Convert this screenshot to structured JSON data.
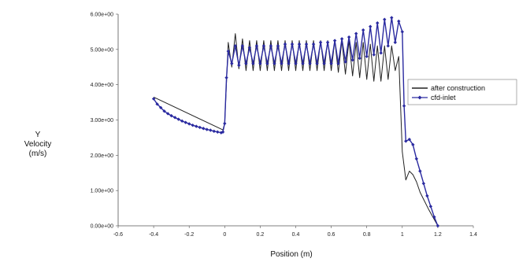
{
  "chart_data": {
    "type": "line",
    "title": "",
    "xlabel": "Position (m)",
    "ylabel": [
      "Y",
      "Velocity",
      "(m/s)"
    ],
    "xlim": [
      -0.6,
      1.4
    ],
    "ylim": [
      0,
      6
    ],
    "xticks": [
      -0.6,
      -0.4,
      -0.2,
      0,
      0.2,
      0.4,
      0.6,
      0.8,
      1,
      1.2,
      1.4
    ],
    "xtick_labels": [
      "-0.6",
      "-0.4",
      "-0.2",
      "0",
      "0.2",
      "0.4",
      "0.6",
      "0.8",
      "1",
      "1.2",
      "1.4"
    ],
    "yticks": [
      0,
      1,
      2,
      3,
      4,
      5,
      6
    ],
    "ytick_labels": [
      "0.00e+00",
      "1.00e+00",
      "2.00e+00",
      "3.00e+00",
      "4.00e+00",
      "5.00e+00",
      "6.00e+00"
    ],
    "grid": false,
    "legend_position": "right",
    "series": [
      {
        "name": "after construction",
        "color": "#222222",
        "marker": "none",
        "x": [
          -0.4,
          -0.01,
          0.0,
          0.02,
          0.04,
          0.06,
          0.08,
          0.1,
          0.12,
          0.14,
          0.16,
          0.18,
          0.2,
          0.22,
          0.24,
          0.26,
          0.28,
          0.3,
          0.32,
          0.34,
          0.36,
          0.38,
          0.4,
          0.42,
          0.44,
          0.46,
          0.48,
          0.5,
          0.52,
          0.54,
          0.56,
          0.58,
          0.6,
          0.62,
          0.64,
          0.66,
          0.68,
          0.7,
          0.72,
          0.74,
          0.76,
          0.78,
          0.8,
          0.82,
          0.84,
          0.86,
          0.88,
          0.9,
          0.92,
          0.94,
          0.96,
          0.98,
          1.0,
          1.02,
          1.04,
          1.06,
          1.08,
          1.1,
          1.15,
          1.2
        ],
        "y": [
          3.65,
          2.72,
          2.9,
          5.2,
          4.5,
          5.45,
          4.45,
          5.3,
          4.4,
          5.25,
          4.4,
          5.25,
          4.4,
          5.25,
          4.4,
          5.25,
          4.4,
          5.25,
          4.4,
          5.25,
          4.4,
          5.25,
          4.4,
          5.25,
          4.4,
          5.25,
          4.4,
          5.25,
          4.4,
          5.25,
          4.4,
          5.25,
          4.4,
          5.25,
          4.35,
          5.25,
          4.3,
          5.25,
          4.25,
          5.2,
          4.2,
          5.2,
          4.15,
          5.15,
          4.1,
          5.1,
          4.1,
          5.1,
          4.15,
          5.1,
          4.4,
          4.8,
          2.1,
          1.3,
          1.55,
          1.45,
          1.25,
          0.95,
          0.45,
          0.0
        ]
      },
      {
        "name": "cfd-inlet",
        "color": "#2a2aa0",
        "marker": "diamond",
        "x": [
          -0.4,
          -0.38,
          -0.36,
          -0.34,
          -0.32,
          -0.3,
          -0.28,
          -0.26,
          -0.24,
          -0.22,
          -0.2,
          -0.18,
          -0.16,
          -0.14,
          -0.12,
          -0.1,
          -0.08,
          -0.06,
          -0.04,
          -0.02,
          -0.01,
          0.0,
          0.01,
          0.02,
          0.04,
          0.06,
          0.08,
          0.1,
          0.12,
          0.14,
          0.16,
          0.18,
          0.2,
          0.22,
          0.24,
          0.26,
          0.28,
          0.3,
          0.32,
          0.34,
          0.36,
          0.38,
          0.4,
          0.42,
          0.44,
          0.46,
          0.48,
          0.5,
          0.52,
          0.54,
          0.56,
          0.58,
          0.6,
          0.62,
          0.64,
          0.66,
          0.68,
          0.7,
          0.72,
          0.74,
          0.76,
          0.78,
          0.8,
          0.82,
          0.84,
          0.86,
          0.88,
          0.9,
          0.92,
          0.94,
          0.96,
          0.98,
          1.0,
          1.01,
          1.02,
          1.04,
          1.06,
          1.08,
          1.1,
          1.12,
          1.14,
          1.16,
          1.18,
          1.2
        ],
        "y": [
          3.6,
          3.45,
          3.35,
          3.25,
          3.18,
          3.12,
          3.07,
          3.02,
          2.97,
          2.93,
          2.89,
          2.85,
          2.82,
          2.79,
          2.76,
          2.73,
          2.71,
          2.68,
          2.66,
          2.64,
          2.66,
          2.9,
          4.2,
          4.95,
          4.6,
          5.1,
          4.55,
          5.1,
          4.6,
          5.05,
          4.6,
          5.1,
          4.6,
          5.1,
          4.6,
          5.1,
          4.6,
          5.1,
          4.6,
          5.15,
          4.6,
          5.15,
          4.6,
          5.15,
          4.6,
          5.15,
          4.6,
          5.15,
          4.6,
          5.2,
          4.6,
          5.2,
          4.6,
          5.25,
          4.6,
          5.3,
          4.65,
          5.35,
          4.7,
          5.45,
          4.75,
          5.55,
          4.8,
          5.65,
          4.85,
          5.75,
          4.9,
          5.85,
          5.1,
          5.9,
          5.2,
          5.8,
          5.5,
          3.4,
          2.4,
          2.45,
          2.3,
          1.9,
          1.55,
          1.2,
          0.85,
          0.55,
          0.25,
          0.0
        ]
      }
    ]
  }
}
